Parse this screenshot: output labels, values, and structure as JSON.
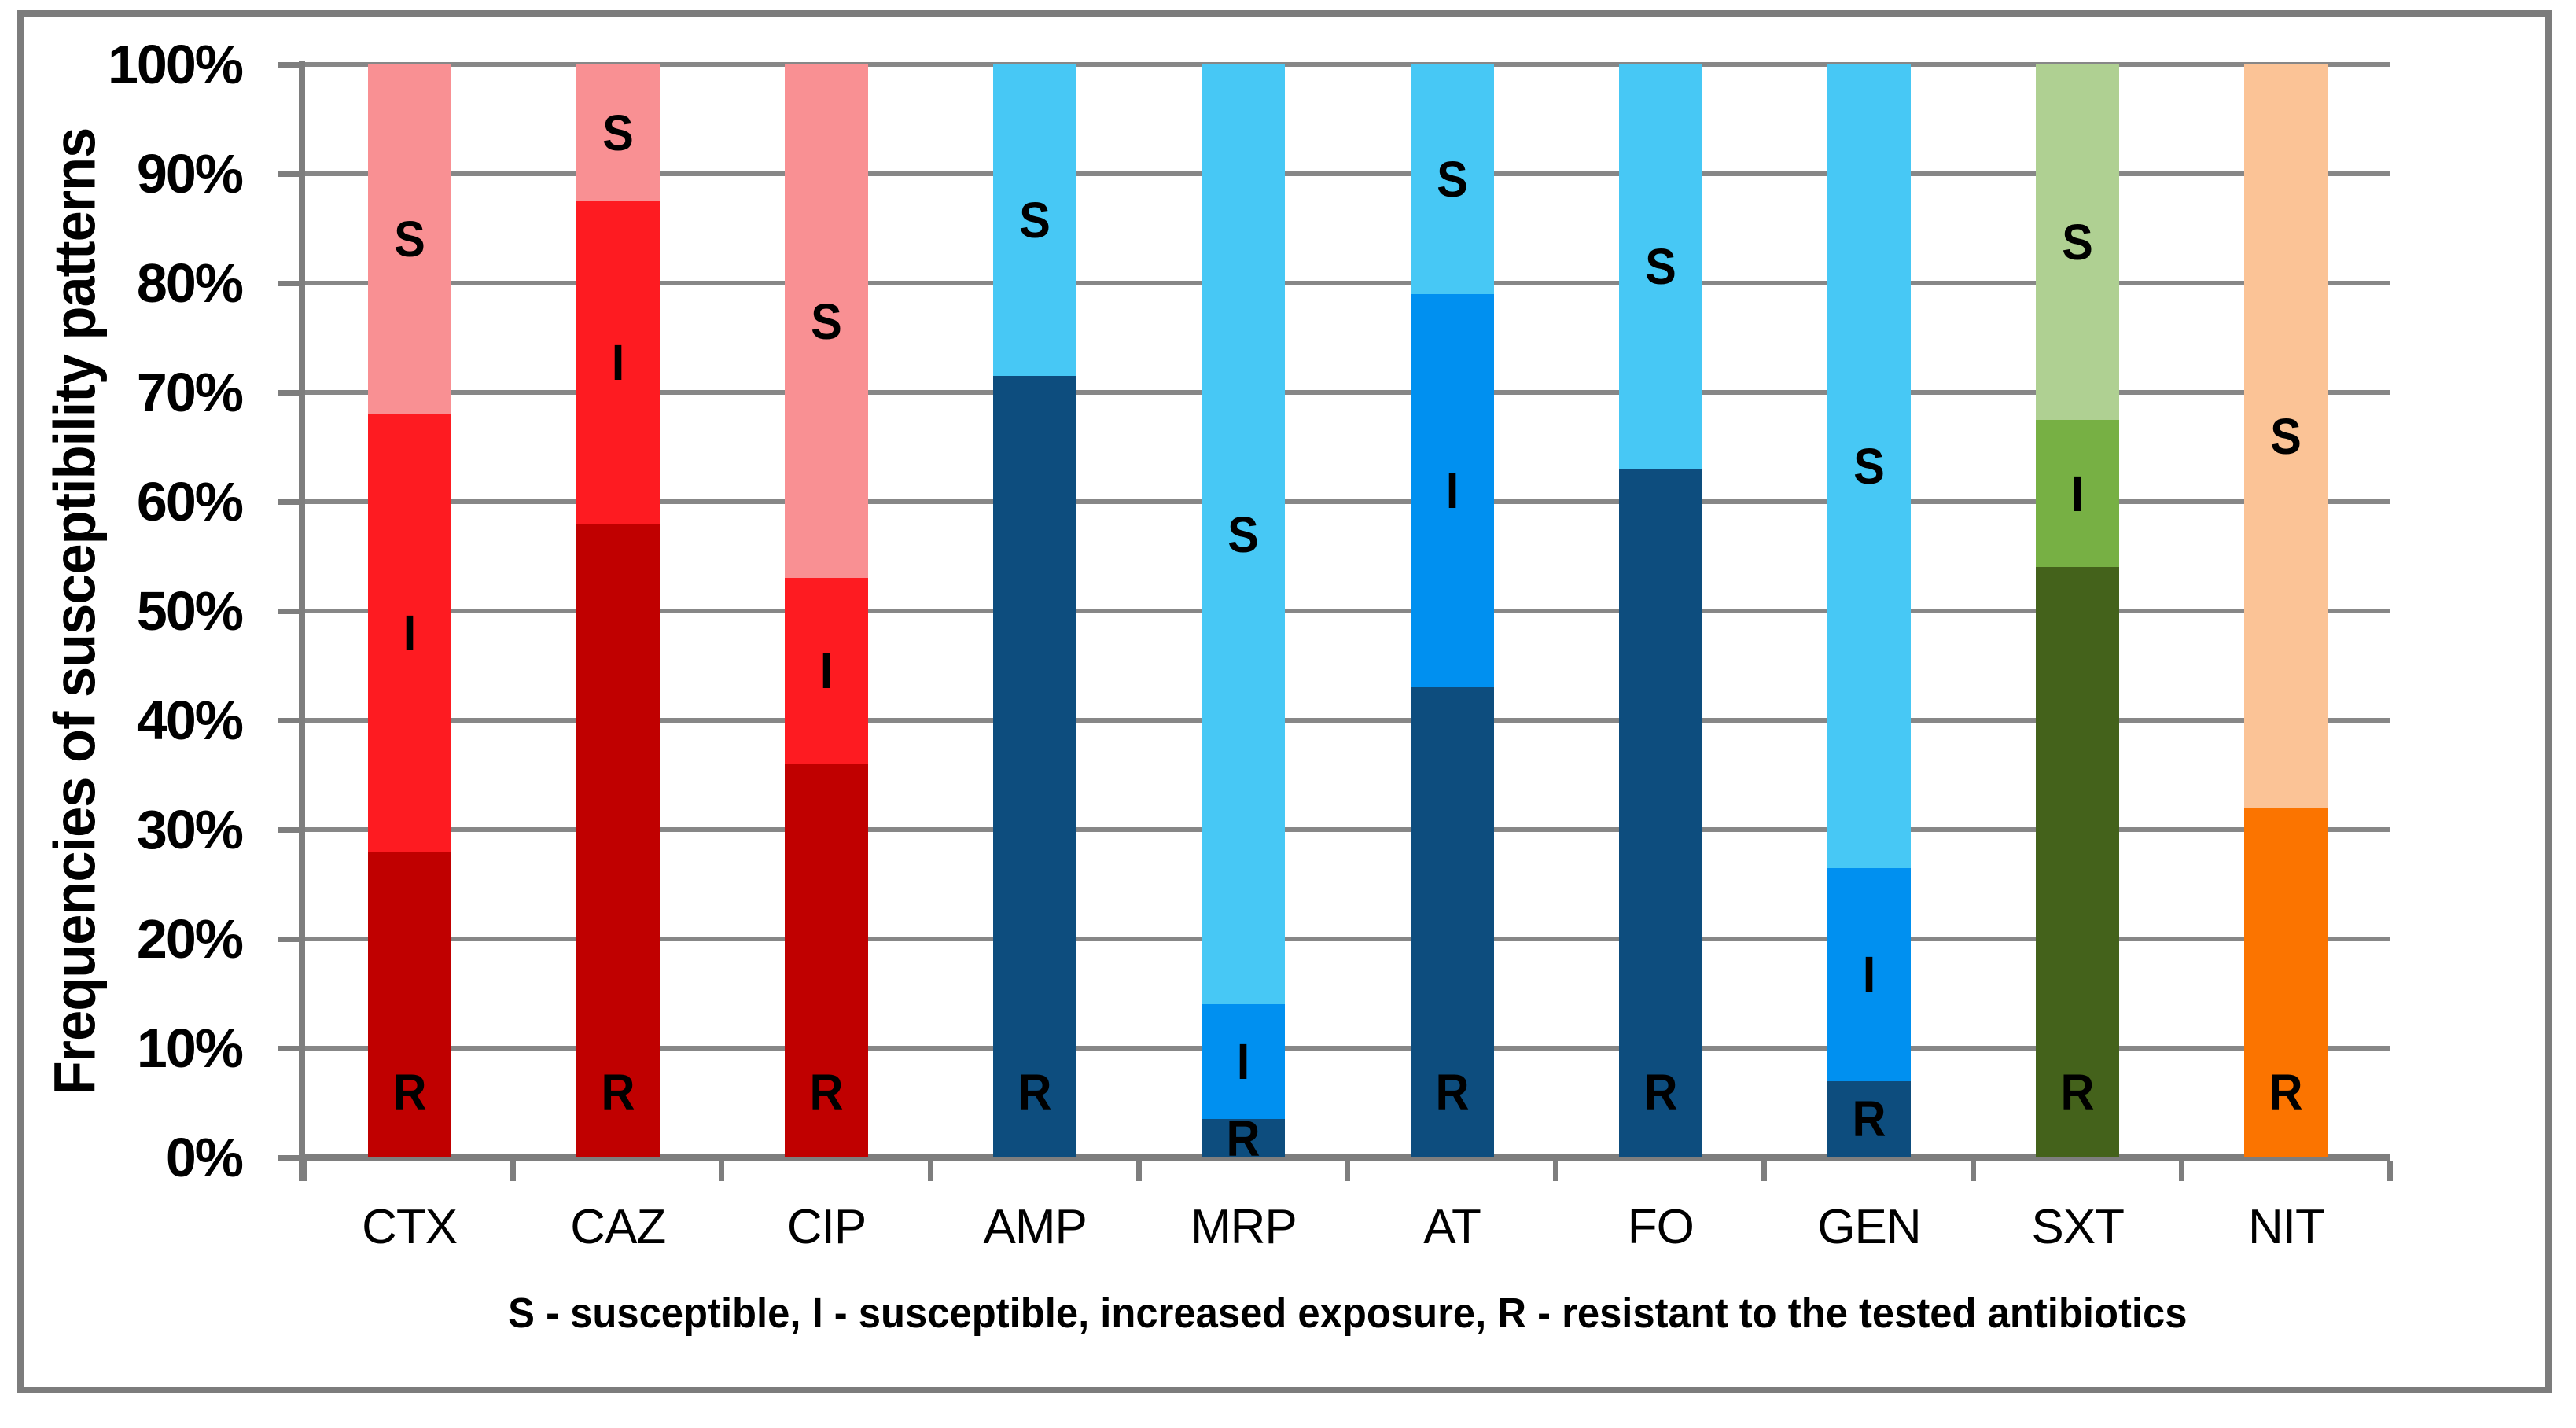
{
  "page": {
    "background": "#ffffff",
    "frame_color": "#7c7c7c"
  },
  "chart_data": {
    "type": "bar",
    "stacked": true,
    "percent_stacked": true,
    "ylabel": "Frequencies of susceptibility patterns",
    "legend_note": "S - susceptible, I - susceptible, increased exposure, R - resistant to the tested antibiotics",
    "ylim": [
      0,
      100
    ],
    "yticks": [
      "0%",
      "10%",
      "20%",
      "30%",
      "40%",
      "50%",
      "60%",
      "70%",
      "80%",
      "90%",
      "100%"
    ],
    "grid": "horizontal",
    "legend_position": "none",
    "categories": [
      "CTX",
      "CAZ",
      "CIP",
      "AMP",
      "MRP",
      "AT",
      "FO",
      "GEN",
      "SXT",
      "NIT"
    ],
    "series": [
      {
        "name": "R",
        "label": "R",
        "values": [
          28,
          58,
          36,
          71.5,
          3.5,
          43,
          63,
          7,
          54,
          32
        ]
      },
      {
        "name": "I",
        "label": "I",
        "values": [
          40,
          29.5,
          17,
          0,
          10.5,
          36,
          0,
          19.5,
          13.5,
          0
        ]
      },
      {
        "name": "S",
        "label": "S",
        "values": [
          32,
          12.5,
          47,
          28.5,
          86,
          21,
          37,
          73.5,
          32.5,
          68
        ]
      }
    ],
    "category_color_family": [
      "red",
      "red",
      "red",
      "blue",
      "blue",
      "blue",
      "blue",
      "blue",
      "green",
      "orange"
    ],
    "palette": {
      "red": {
        "R": "#C00000",
        "I": "#FE1B21",
        "S": "#F99093"
      },
      "blue": {
        "R": "#0D4D7E",
        "I": "#0090F0",
        "S": "#47C8F5"
      },
      "green": {
        "R": "#44621B",
        "I": "#77B044",
        "S": "#AFD092"
      },
      "orange": {
        "R": "#FB7400",
        "I": "#FB9A4B",
        "S": "#FBC396"
      }
    },
    "gridline_color": "#878787",
    "axis_color": "#7e7e7e",
    "text_color": "#000000"
  }
}
